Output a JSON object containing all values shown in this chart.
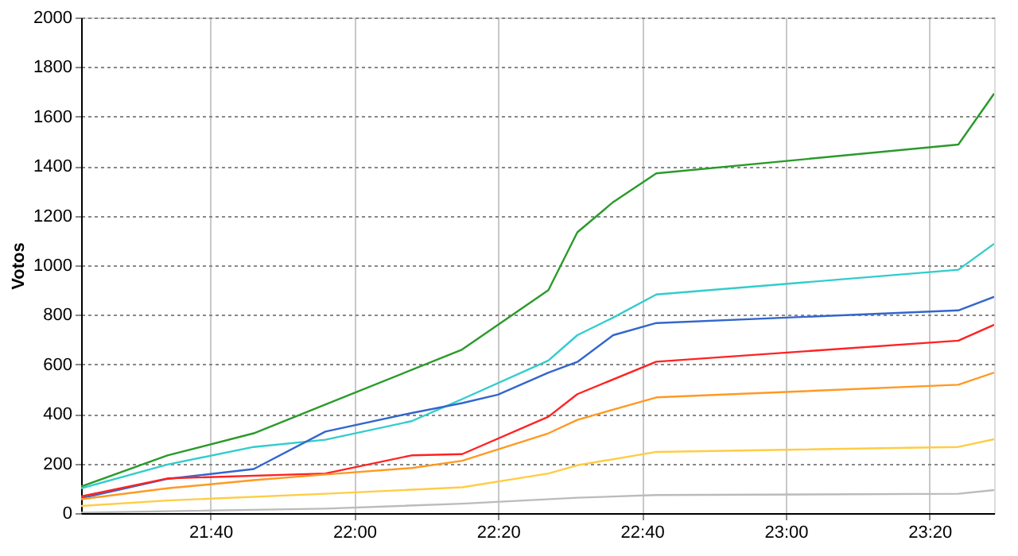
{
  "chart_data": {
    "type": "line",
    "ylabel": "Votos",
    "xlim": [
      21.367,
      23.483
    ],
    "ylim": [
      0,
      2000
    ],
    "yticks": [
      0,
      200,
      400,
      600,
      800,
      1000,
      1200,
      1400,
      1600,
      1800,
      2000
    ],
    "xticks": [
      {
        "value": 21.6667,
        "label": "21:40"
      },
      {
        "value": 22,
        "label": "22:00"
      },
      {
        "value": 22.3333,
        "label": "22:20"
      },
      {
        "value": 22.6667,
        "label": "22:40"
      },
      {
        "value": 23,
        "label": "23:00"
      },
      {
        "value": 23.3333,
        "label": "23:20"
      }
    ],
    "grid": true,
    "legend": false,
    "marker": "none",
    "line_style": "solid",
    "series": [
      {
        "color": "#2a9a2a",
        "x": [
          21.367,
          21.567,
          21.767,
          22.25,
          22.45,
          22.517,
          22.6,
          22.7,
          23.4,
          23.483
        ],
        "values": [
          107,
          233,
          322,
          660,
          900,
          1133,
          1255,
          1371,
          1487,
          1693
        ]
      },
      {
        "color": "#33cccc",
        "x": [
          21.367,
          21.567,
          21.767,
          21.933,
          22.133,
          22.25,
          22.45,
          22.517,
          22.6,
          22.7,
          23.4,
          23.483
        ],
        "values": [
          100,
          196,
          267,
          296,
          371,
          460,
          616,
          718,
          789,
          882,
          982,
          1087
        ]
      },
      {
        "color": "#3366cc",
        "x": [
          21.367,
          21.567,
          21.767,
          21.933,
          22.133,
          22.25,
          22.333,
          22.45,
          22.517,
          22.6,
          22.7,
          23.4,
          23.483
        ],
        "values": [
          60,
          138,
          178,
          329,
          404,
          444,
          478,
          567,
          610,
          718,
          767,
          818,
          873
        ]
      },
      {
        "color": "#ff2222",
        "x": [
          21.367,
          21.567,
          21.933,
          22.133,
          22.25,
          22.45,
          22.517,
          22.7,
          23.4,
          23.483
        ],
        "values": [
          67,
          140,
          160,
          233,
          238,
          389,
          480,
          611,
          696,
          760
        ]
      },
      {
        "color": "#ff9922",
        "x": [
          21.367,
          21.567,
          21.767,
          21.933,
          22.133,
          22.25,
          22.45,
          22.517,
          22.7,
          23.4,
          23.483
        ],
        "values": [
          56,
          100,
          133,
          156,
          182,
          211,
          322,
          376,
          467,
          518,
          567
        ]
      },
      {
        "color": "#ffcc44",
        "x": [
          21.367,
          21.567,
          21.933,
          22.25,
          22.45,
          22.517,
          22.7,
          23.4,
          23.483
        ],
        "values": [
          29,
          51,
          78,
          104,
          160,
          193,
          247,
          267,
          298
        ]
      },
      {
        "color": "#bbbbbb",
        "x": [
          21.367,
          21.933,
          22.25,
          22.517,
          22.7,
          23.4,
          23.483
        ],
        "values": [
          2,
          18,
          38,
          62,
          73,
          78,
          93
        ]
      }
    ]
  }
}
